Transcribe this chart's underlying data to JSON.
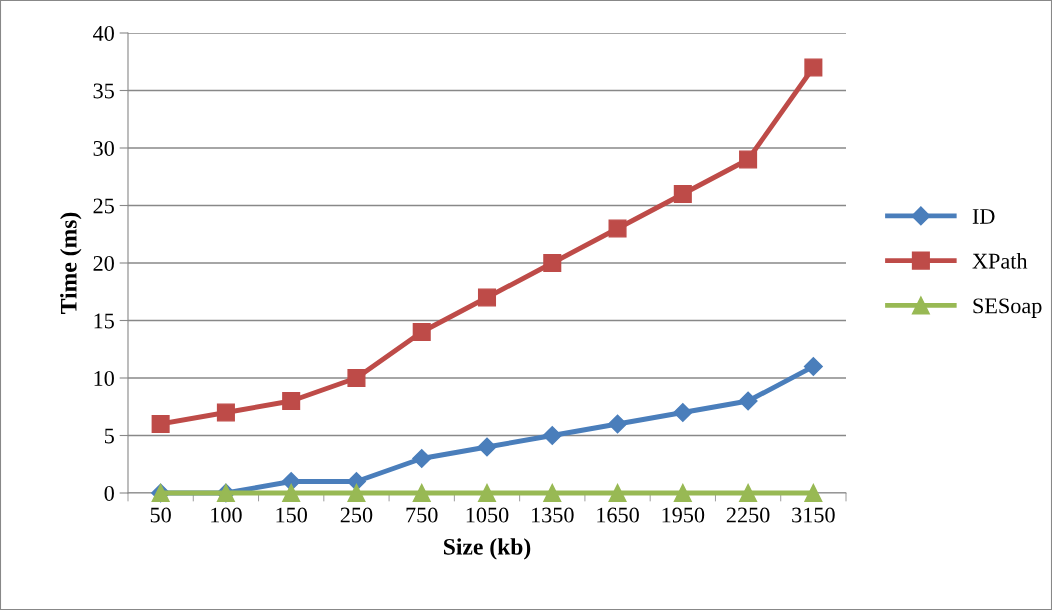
{
  "chart_data": {
    "type": "line",
    "xlabel": "Size (kb)",
    "ylabel": "Time (ms)",
    "categories": [
      "50",
      "100",
      "150",
      "250",
      "750",
      "1050",
      "1350",
      "1650",
      "1950",
      "2250",
      "3150"
    ],
    "series": [
      {
        "name": "ID",
        "color": "#4a7ebb",
        "marker": "diamond",
        "values": [
          0,
          0,
          1,
          1,
          3,
          4,
          5,
          6,
          7,
          8,
          11
        ]
      },
      {
        "name": "XPath",
        "color": "#be4b48",
        "marker": "square",
        "values": [
          6,
          7,
          8,
          10,
          14,
          17,
          20,
          23,
          26,
          29,
          37
        ]
      },
      {
        "name": "SESoap",
        "color": "#98b954",
        "marker": "triangle",
        "values": [
          0,
          0,
          0,
          0,
          0,
          0,
          0,
          0,
          0,
          0,
          0
        ]
      }
    ],
    "ylim": [
      0,
      40
    ],
    "yticks": [
      0,
      5,
      10,
      15,
      20,
      25,
      30,
      35,
      40
    ],
    "grid": "y",
    "legend": "right",
    "line_style": "solid"
  }
}
